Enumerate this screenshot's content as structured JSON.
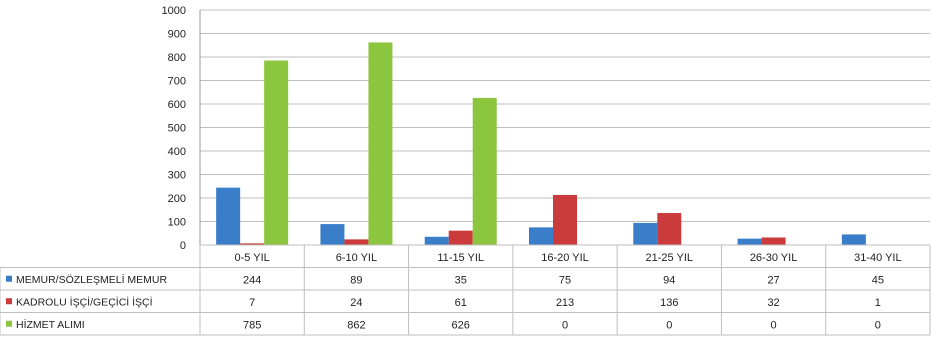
{
  "chart_data": {
    "type": "bar",
    "categories": [
      "0-5 YIL",
      "6-10 YIL",
      "11-15 YIL",
      "16-20 YIL",
      "21-25 YIL",
      "26-30 YIL",
      "31-40 YIL"
    ],
    "series": [
      {
        "name": "MEMUR/SÖZLEŞMELİ MEMUR",
        "color": "#3a7dc9",
        "values": [
          244,
          89,
          35,
          75,
          94,
          27,
          45
        ]
      },
      {
        "name": "KADROLU İŞÇİ/GEÇİCİ İŞÇİ",
        "color": "#cc3b3b",
        "values": [
          7,
          24,
          61,
          213,
          136,
          32,
          1
        ]
      },
      {
        "name": "HİZMET ALIMI",
        "color": "#8cc63f",
        "values": [
          785,
          862,
          626,
          0,
          0,
          0,
          0
        ]
      }
    ],
    "ylim": [
      0,
      1000
    ],
    "yticks": [
      "0",
      "100",
      "200",
      "300",
      "400",
      "500",
      "600",
      "700",
      "800",
      "900",
      "1000"
    ],
    "grid": true,
    "legend": "data-table-left"
  }
}
